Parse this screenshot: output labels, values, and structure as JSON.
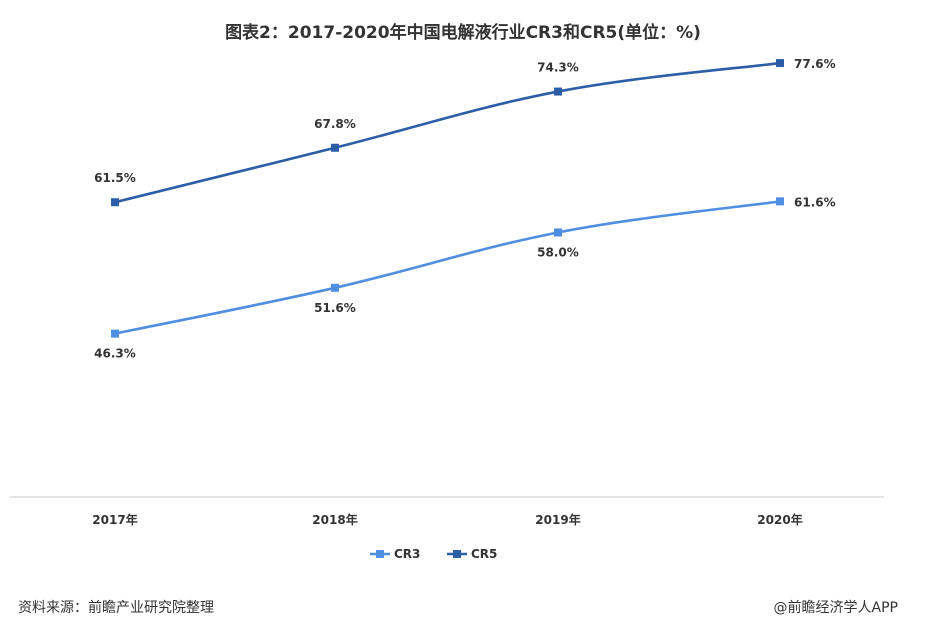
{
  "chart_data": {
    "type": "line",
    "title": "图表2：2017-2020年中国电解液行业CR3和CR5(单位：%)",
    "categories": [
      "2017年",
      "2018年",
      "2019年",
      "2020年"
    ],
    "series": [
      {
        "name": "CR3",
        "values": [
          46.3,
          51.6,
          58.0,
          61.6
        ],
        "labels": [
          "46.3%",
          "51.6%",
          "58.0%",
          "61.6%"
        ],
        "color": "#4f8ee0"
      },
      {
        "name": "CR5",
        "values": [
          61.5,
          67.8,
          74.3,
          77.6
        ],
        "labels": [
          "61.5%",
          "67.8%",
          "74.3%",
          "77.6%"
        ],
        "color": "#2b5ea7"
      }
    ],
    "ylim": [
      27.4,
      82
    ],
    "grid": false,
    "legend_position": "bottom-center"
  },
  "footer": {
    "source": "资料来源：前瞻产业研究院整理",
    "brand": "@前瞻经济学人APP"
  },
  "colors": {
    "axis": "#c9c9c9",
    "text": "#333333"
  }
}
